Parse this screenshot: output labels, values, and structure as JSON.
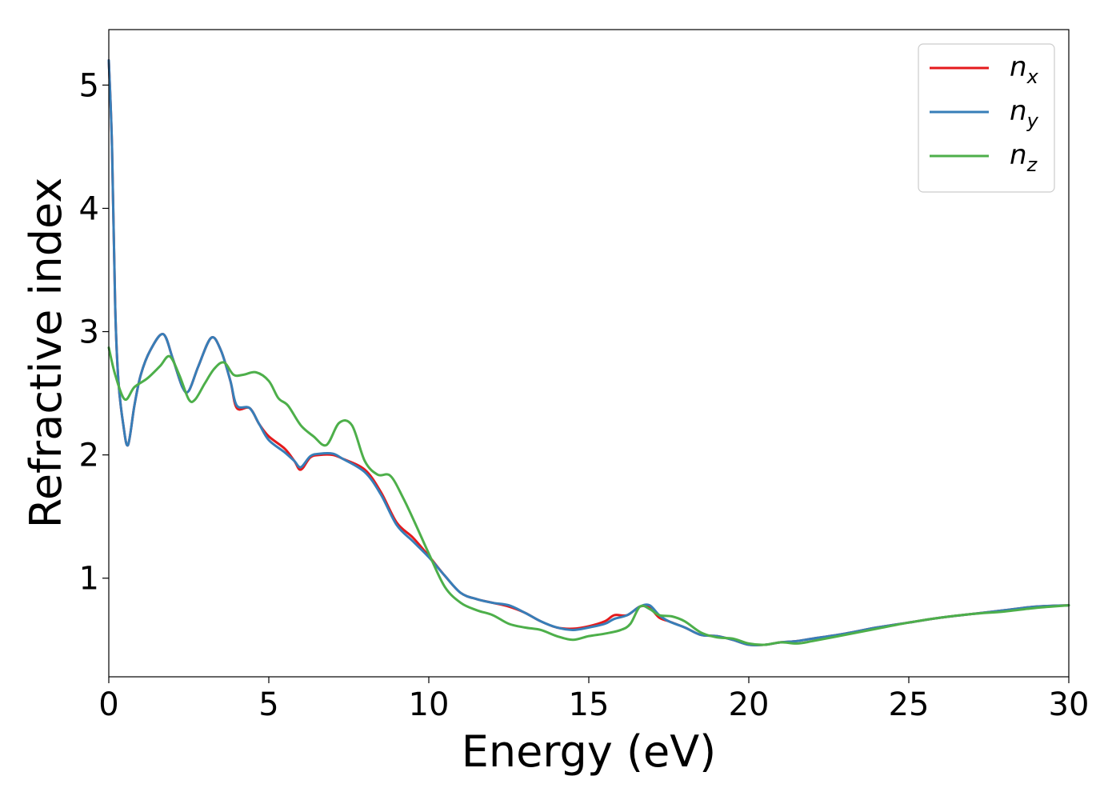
{
  "chart_data": {
    "type": "line",
    "title": "",
    "xlabel": "Energy (eV)",
    "ylabel": "Refractive index",
    "xlim": [
      0,
      30
    ],
    "ylim": [
      0.2,
      5.45
    ],
    "xticks": [
      0,
      5,
      10,
      15,
      20,
      25,
      30
    ],
    "yticks": [
      1,
      2,
      3,
      4,
      5
    ],
    "grid": false,
    "legend_position": "top-right",
    "series": [
      {
        "name": "n_x",
        "label_base": "n",
        "label_sub": "x",
        "color": "#e41a1c",
        "x": [
          0,
          0.1,
          0.2,
          0.3,
          0.45,
          0.6,
          0.8,
          1.0,
          1.3,
          1.7,
          2.0,
          2.3,
          2.5,
          2.8,
          3.2,
          3.5,
          3.8,
          4.0,
          4.4,
          4.7,
          5.0,
          5.5,
          5.8,
          6.0,
          6.3,
          6.6,
          7.0,
          7.3,
          8.0,
          8.5,
          9.0,
          9.5,
          10.0,
          10.5,
          11.0,
          11.5,
          12.0,
          12.5,
          13.0,
          13.5,
          14.0,
          14.5,
          15.0,
          15.5,
          15.8,
          16.2,
          16.6,
          16.9,
          17.2,
          17.5,
          18.0,
          18.5,
          19.0,
          19.5,
          20.0,
          20.5,
          21.0,
          21.5,
          22.0,
          23.0,
          24.0,
          25.0,
          26.0,
          27.0,
          28.0,
          29.0,
          30.0
        ],
        "y": [
          5.2,
          4.5,
          3.2,
          2.6,
          2.25,
          2.08,
          2.4,
          2.65,
          2.85,
          2.98,
          2.78,
          2.55,
          2.52,
          2.72,
          2.95,
          2.85,
          2.6,
          2.38,
          2.38,
          2.25,
          2.15,
          2.05,
          1.95,
          1.88,
          1.98,
          2.0,
          2.0,
          1.97,
          1.88,
          1.7,
          1.45,
          1.33,
          1.18,
          1.02,
          0.88,
          0.83,
          0.8,
          0.77,
          0.72,
          0.65,
          0.6,
          0.59,
          0.61,
          0.65,
          0.7,
          0.7,
          0.77,
          0.76,
          0.68,
          0.65,
          0.6,
          0.54,
          0.53,
          0.5,
          0.46,
          0.46,
          0.48,
          0.49,
          0.51,
          0.55,
          0.6,
          0.64,
          0.68,
          0.71,
          0.74,
          0.77,
          0.78
        ]
      },
      {
        "name": "n_y",
        "label_base": "n",
        "label_sub": "y",
        "color": "#377eb8",
        "x": [
          0,
          0.1,
          0.2,
          0.3,
          0.45,
          0.6,
          0.8,
          1.0,
          1.3,
          1.7,
          2.0,
          2.3,
          2.5,
          2.8,
          3.2,
          3.5,
          3.8,
          4.0,
          4.4,
          4.7,
          5.0,
          5.5,
          5.8,
          6.0,
          6.3,
          6.6,
          7.0,
          7.3,
          8.0,
          8.5,
          9.0,
          9.5,
          10.0,
          10.5,
          11.0,
          11.5,
          12.0,
          12.5,
          13.0,
          13.5,
          14.0,
          14.5,
          15.0,
          15.5,
          15.8,
          16.2,
          16.6,
          16.9,
          17.2,
          17.5,
          18.0,
          18.5,
          19.0,
          19.5,
          20.0,
          20.5,
          21.0,
          21.5,
          22.0,
          23.0,
          24.0,
          25.0,
          26.0,
          27.0,
          28.0,
          29.0,
          30.0
        ],
        "y": [
          5.2,
          4.5,
          3.2,
          2.6,
          2.25,
          2.08,
          2.4,
          2.65,
          2.85,
          2.98,
          2.78,
          2.55,
          2.52,
          2.72,
          2.95,
          2.85,
          2.6,
          2.4,
          2.38,
          2.25,
          2.12,
          2.02,
          1.95,
          1.9,
          1.99,
          2.01,
          2.01,
          1.97,
          1.86,
          1.68,
          1.43,
          1.3,
          1.17,
          1.02,
          0.88,
          0.83,
          0.8,
          0.78,
          0.72,
          0.65,
          0.6,
          0.58,
          0.6,
          0.63,
          0.67,
          0.7,
          0.77,
          0.78,
          0.7,
          0.65,
          0.6,
          0.54,
          0.53,
          0.5,
          0.46,
          0.46,
          0.48,
          0.49,
          0.51,
          0.55,
          0.6,
          0.64,
          0.68,
          0.71,
          0.74,
          0.77,
          0.78
        ]
      },
      {
        "name": "n_z",
        "label_base": "n",
        "label_sub": "z",
        "color": "#4daf4a",
        "x": [
          0,
          0.2,
          0.5,
          0.8,
          1.2,
          1.6,
          1.9,
          2.2,
          2.5,
          2.7,
          3.0,
          3.3,
          3.6,
          3.9,
          4.2,
          4.6,
          5.0,
          5.3,
          5.6,
          6.0,
          6.4,
          6.8,
          7.2,
          7.6,
          8.0,
          8.4,
          8.8,
          9.2,
          9.6,
          10.0,
          10.5,
          11.0,
          11.5,
          12.0,
          12.5,
          13.0,
          13.5,
          14.0,
          14.5,
          15.0,
          15.5,
          16.0,
          16.3,
          16.6,
          16.9,
          17.2,
          17.6,
          18.0,
          18.5,
          19.0,
          19.5,
          20.0,
          20.5,
          21.0,
          21.5,
          22.0,
          23.0,
          24.0,
          25.0,
          26.0,
          27.0,
          28.0,
          29.0,
          30.0
        ],
        "y": [
          2.87,
          2.65,
          2.45,
          2.55,
          2.62,
          2.72,
          2.8,
          2.65,
          2.45,
          2.45,
          2.58,
          2.7,
          2.75,
          2.65,
          2.65,
          2.67,
          2.6,
          2.46,
          2.4,
          2.24,
          2.15,
          2.08,
          2.26,
          2.24,
          1.95,
          1.84,
          1.83,
          1.65,
          1.43,
          1.2,
          0.93,
          0.8,
          0.74,
          0.7,
          0.63,
          0.6,
          0.58,
          0.53,
          0.5,
          0.53,
          0.55,
          0.58,
          0.63,
          0.77,
          0.75,
          0.7,
          0.69,
          0.65,
          0.56,
          0.52,
          0.51,
          0.47,
          0.46,
          0.48,
          0.47,
          0.49,
          0.54,
          0.59,
          0.64,
          0.68,
          0.71,
          0.73,
          0.76,
          0.78
        ]
      }
    ]
  }
}
